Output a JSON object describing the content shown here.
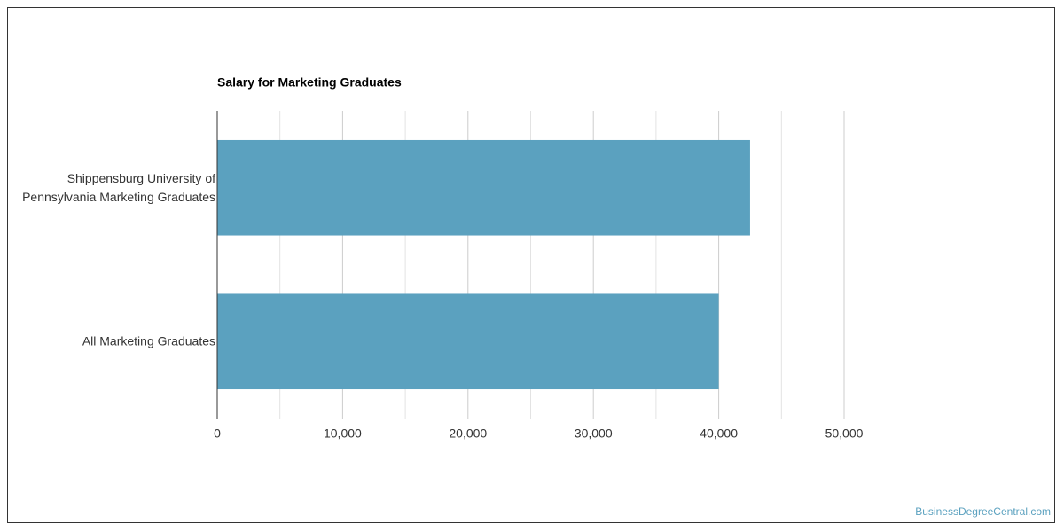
{
  "chart_data": {
    "type": "hbar",
    "title": "Salary for Marketing Graduates",
    "categories": [
      "Shippensburg University of Pennsylvania Marketing Graduates",
      "All Marketing Graduates"
    ],
    "values": [
      42500,
      40000
    ],
    "color": "#5ba1bf",
    "xlim": [
      0,
      50000
    ],
    "xticks": [
      0,
      {
        "value": 10000,
        "label": "10,000"
      },
      {
        "value": 20000,
        "label": "20,000"
      },
      {
        "value": 30000,
        "label": "30,000"
      },
      {
        "value": 40000,
        "label": "40,000"
      },
      {
        "value": 50000,
        "label": "50,000"
      }
    ],
    "minor_xticks": [
      5000,
      15000,
      25000,
      35000,
      45000
    ],
    "grid": true,
    "source": "BusinessDegreeCentral.com"
  }
}
